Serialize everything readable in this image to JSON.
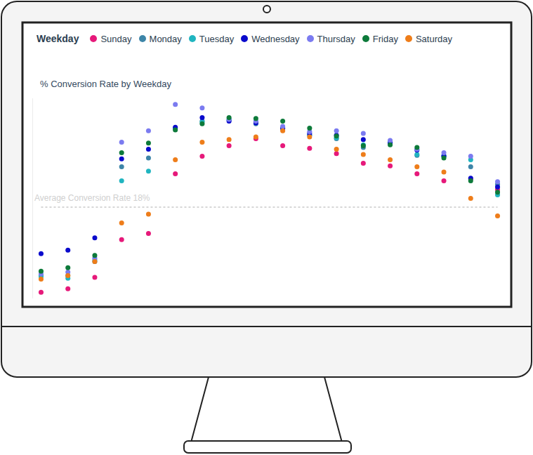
{
  "chart_data": {
    "type": "scatter",
    "title": "% Conversion Rate by Weekday",
    "legend_title": "Weekday",
    "categories": [
      null,
      null,
      null,
      null,
      null,
      null,
      null,
      null,
      null,
      null,
      null,
      null,
      null,
      null,
      null,
      null,
      null,
      null
    ],
    "series": [
      {
        "name": "Sunday",
        "color": "#e6197a",
        "values": [
          8.3,
          8.7,
          10.0,
          14.3,
          15.0,
          21.8,
          23.8,
          25.0,
          25.8,
          25.0,
          24.7,
          24.1,
          23.0,
          22.7,
          21.8,
          21.0,
          21.2,
          20.0
        ]
      },
      {
        "name": "Monday",
        "color": "#3d85a8",
        "values": [
          10.2,
          10.2,
          11.8,
          22.6,
          23.6,
          26.9,
          27.8,
          27.9,
          27.5,
          26.9,
          26.2,
          25.8,
          24.8,
          25.4,
          23.9,
          23.8,
          22.6,
          20.6
        ]
      },
      {
        "name": "Tuesday",
        "color": "#20b5c0",
        "values": [
          10.1,
          9.9,
          12.0,
          21.0,
          22.1,
          27.0,
          27.7,
          28.0,
          27.7,
          27.0,
          26.2,
          25.9,
          25.1,
          25.4,
          24.0,
          23.9,
          23.4,
          19.4
        ]
      },
      {
        "name": "Wednesday",
        "color": "#0a0acc",
        "values": [
          12.7,
          13.1,
          14.5,
          23.5,
          24.6,
          27.1,
          28.2,
          27.8,
          27.6,
          27.0,
          26.4,
          26.2,
          25.7,
          25.3,
          24.5,
          23.8,
          21.3,
          20.3
        ]
      },
      {
        "name": "Thursday",
        "color": "#7b7bf0",
        "values": [
          10.4,
          10.6,
          12.2,
          25.4,
          26.7,
          29.7,
          29.3,
          28.0,
          27.8,
          27.2,
          26.6,
          26.7,
          26.4,
          25.6,
          24.6,
          24.2,
          23.8,
          20.9
        ]
      },
      {
        "name": "Friday",
        "color": "#0d7a3a",
        "values": [
          10.7,
          11.1,
          12.5,
          24.2,
          25.3,
          26.8,
          27.5,
          28.2,
          28.1,
          27.8,
          27.0,
          26.1,
          25.0,
          25.1,
          24.8,
          23.6,
          21.0,
          19.7
        ]
      },
      {
        "name": "Saturday",
        "color": "#ee7d1a",
        "values": [
          9.8,
          10.2,
          11.8,
          16.2,
          17.2,
          23.4,
          25.4,
          25.7,
          26.0,
          26.7,
          26.0,
          24.6,
          24.0,
          23.4,
          22.6,
          22.0,
          19.0,
          17.0
        ]
      }
    ],
    "annotations": [
      {
        "text": "Average Conversion Rate 18%",
        "y": 18
      }
    ],
    "ylim": [
      7.6,
      30.4
    ],
    "yticks": [],
    "tick_labels": false,
    "grid": false,
    "legend": "top",
    "marker": "circle"
  }
}
